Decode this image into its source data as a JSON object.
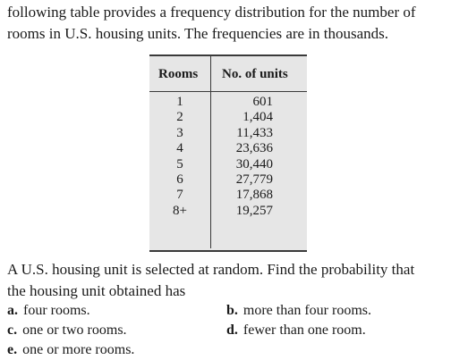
{
  "intro": {
    "line1": "following table provides a frequency distribution for the number of",
    "line2": "rooms in U.S. housing units. The frequencies are in thousands."
  },
  "table": {
    "headers": {
      "rooms": "Rooms",
      "units": "No. of units"
    },
    "rows": [
      {
        "rooms": "1",
        "units": "601"
      },
      {
        "rooms": "2",
        "units": "1,404"
      },
      {
        "rooms": "3",
        "units": "11,433"
      },
      {
        "rooms": "4",
        "units": "23,636"
      },
      {
        "rooms": "5",
        "units": "30,440"
      },
      {
        "rooms": "6",
        "units": "27,779"
      },
      {
        "rooms": "7",
        "units": "17,868"
      },
      {
        "rooms": "8+",
        "units": "19,257"
      }
    ]
  },
  "question": {
    "line1": "A U.S. housing unit is selected at random. Find the probability that",
    "line2": "the housing unit obtained has"
  },
  "parts": [
    {
      "letter": "a.",
      "text": "four rooms."
    },
    {
      "letter": "b.",
      "text": "more than four rooms."
    },
    {
      "letter": "c.",
      "text": "one or two rooms."
    },
    {
      "letter": "d.",
      "text": "fewer than one room."
    },
    {
      "letter": "e.",
      "text": "one or more rooms."
    }
  ]
}
